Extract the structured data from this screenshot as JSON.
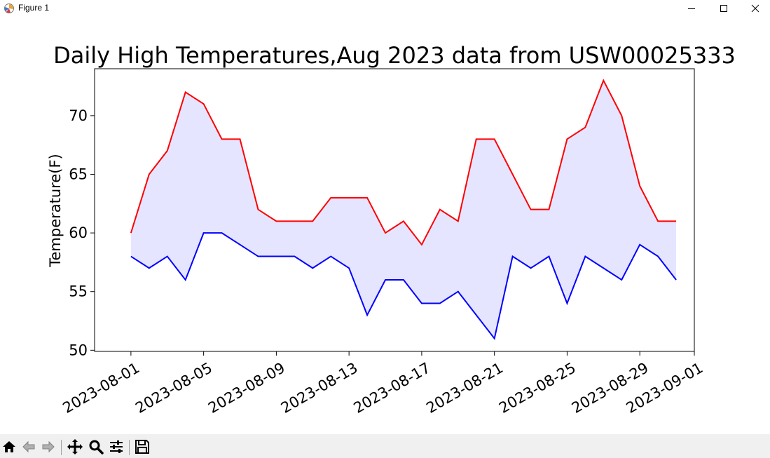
{
  "window": {
    "title": "Figure 1",
    "controls": [
      "minimize",
      "maximize",
      "close"
    ]
  },
  "toolbar": {
    "tools": [
      {
        "name": "home-icon"
      },
      {
        "name": "back-icon"
      },
      {
        "name": "forward-icon"
      },
      {
        "name": "pan-icon"
      },
      {
        "name": "zoom-icon"
      },
      {
        "name": "configure-subplots-icon"
      },
      {
        "name": "save-icon"
      }
    ]
  },
  "chart_data": {
    "type": "line",
    "title": "Daily High Temperatures,Aug 2023 data from USW00025333",
    "xlabel": "",
    "ylabel": "Temperature(F)",
    "x": [
      "2023-08-01",
      "2023-08-02",
      "2023-08-03",
      "2023-08-04",
      "2023-08-05",
      "2023-08-06",
      "2023-08-07",
      "2023-08-08",
      "2023-08-09",
      "2023-08-10",
      "2023-08-11",
      "2023-08-12",
      "2023-08-13",
      "2023-08-14",
      "2023-08-15",
      "2023-08-16",
      "2023-08-17",
      "2023-08-18",
      "2023-08-19",
      "2023-08-20",
      "2023-08-21",
      "2023-08-22",
      "2023-08-23",
      "2023-08-24",
      "2023-08-25",
      "2023-08-26",
      "2023-08-27",
      "2023-08-28",
      "2023-08-29",
      "2023-08-30",
      "2023-08-31"
    ],
    "series": [
      {
        "values": [
          60,
          65,
          67,
          72,
          71,
          68,
          68,
          62,
          61,
          61,
          61,
          63,
          63,
          63,
          60,
          61,
          59,
          62,
          61,
          68,
          68,
          65,
          62,
          62,
          68,
          69,
          73,
          70,
          64,
          61,
          61
        ],
        "color": "#ff0000"
      },
      {
        "values": [
          58,
          57,
          58,
          56,
          60,
          60,
          59,
          58,
          58,
          58,
          57,
          58,
          57,
          53,
          56,
          56,
          54,
          54,
          55,
          53,
          51,
          58,
          57,
          58,
          54,
          58,
          57,
          56,
          59,
          58,
          56
        ],
        "color": "#0000ff"
      }
    ],
    "fill_between": {
      "color": "#0000ff",
      "alpha": 0.1
    },
    "xticks": [
      "2023-08-01",
      "2023-08-05",
      "2023-08-09",
      "2023-08-13",
      "2023-08-17",
      "2023-08-21",
      "2023-08-25",
      "2023-08-29",
      "2023-09-01"
    ],
    "yticks": [
      50,
      55,
      60,
      65,
      70
    ],
    "xlim": [
      "2023-07-30",
      "2023-09-01"
    ],
    "ylim": [
      49.9,
      74
    ],
    "grid": false,
    "legend": "none"
  }
}
